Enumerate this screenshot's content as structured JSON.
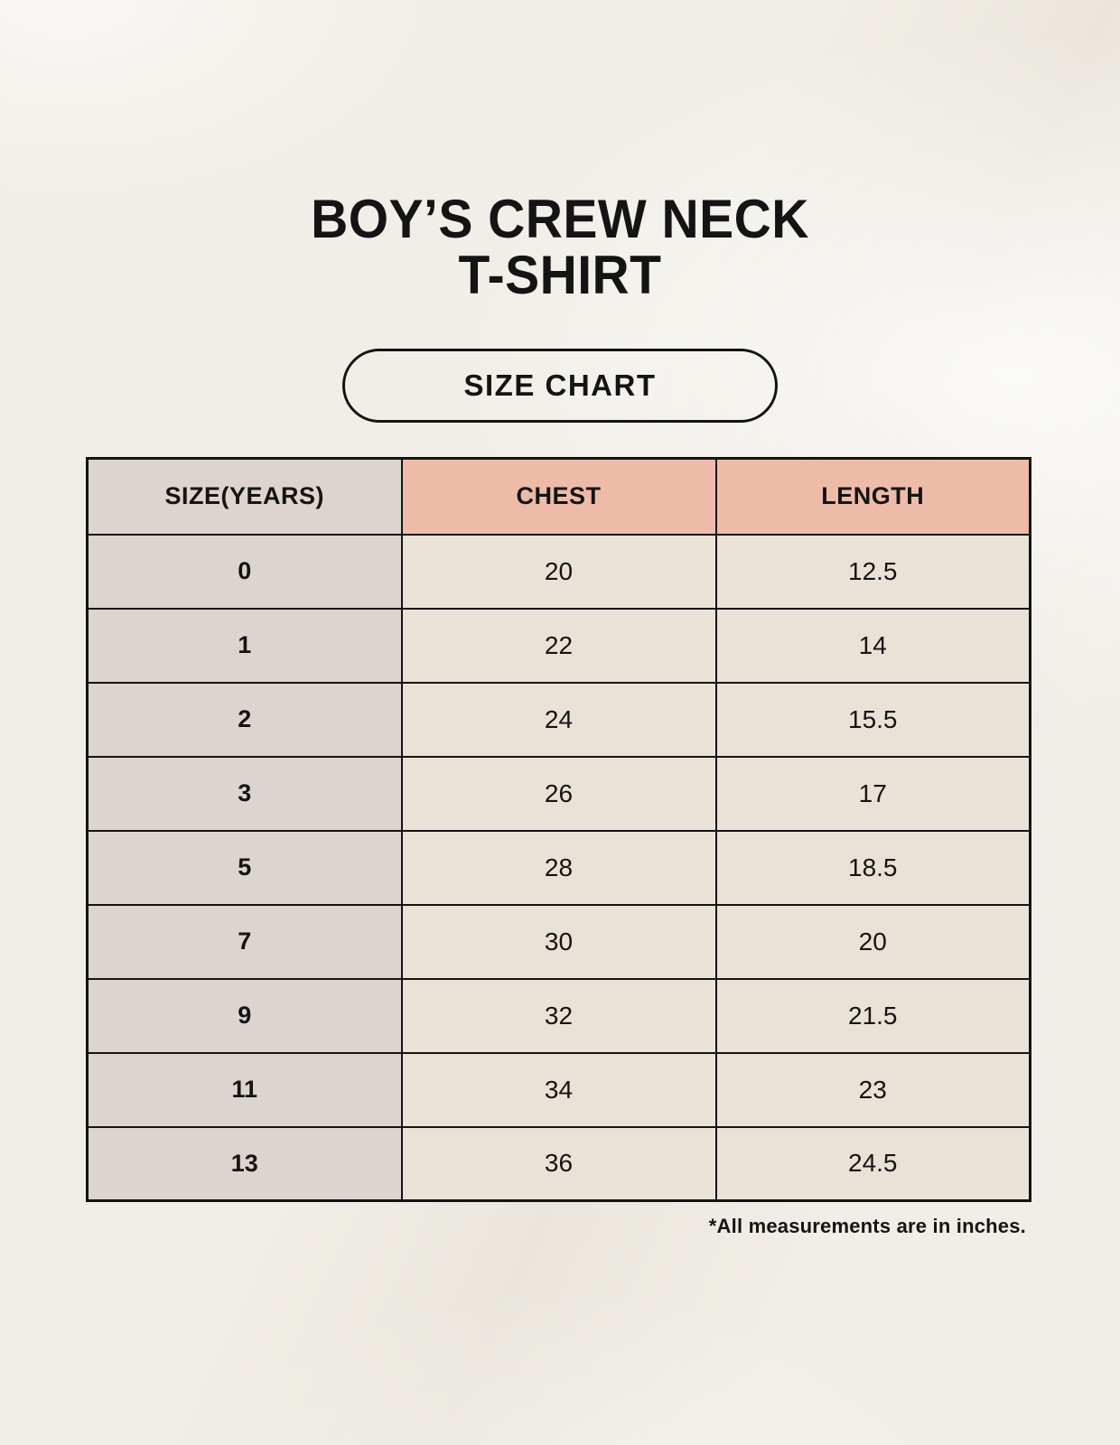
{
  "header": {
    "title_line1": "BOY’S CREW NECK",
    "title_line2": "T-SHIRT",
    "badge_label": "SIZE CHART"
  },
  "table": {
    "columns": [
      "SIZE(YEARS)",
      "CHEST",
      "LENGTH"
    ],
    "rows": [
      {
        "size": "0",
        "chest": "20",
        "length": "12.5"
      },
      {
        "size": "1",
        "chest": "22",
        "length": "14"
      },
      {
        "size": "2",
        "chest": "24",
        "length": "15.5"
      },
      {
        "size": "3",
        "chest": "26",
        "length": "17"
      },
      {
        "size": "5",
        "chest": "28",
        "length": "18.5"
      },
      {
        "size": "7",
        "chest": "30",
        "length": "20"
      },
      {
        "size": "9",
        "chest": "32",
        "length": "21.5"
      },
      {
        "size": "11",
        "chest": "34",
        "length": "23"
      },
      {
        "size": "13",
        "chest": "36",
        "length": "24.5"
      }
    ]
  },
  "footnote": "*All measurements are in inches.",
  "colors": {
    "background": "#f1eee7",
    "size_column_bg": "#dcd5cf",
    "header_accent_bg": "#eebba8",
    "cell_bg": "#e9e2d6",
    "border": "#141414",
    "text": "#141414"
  }
}
